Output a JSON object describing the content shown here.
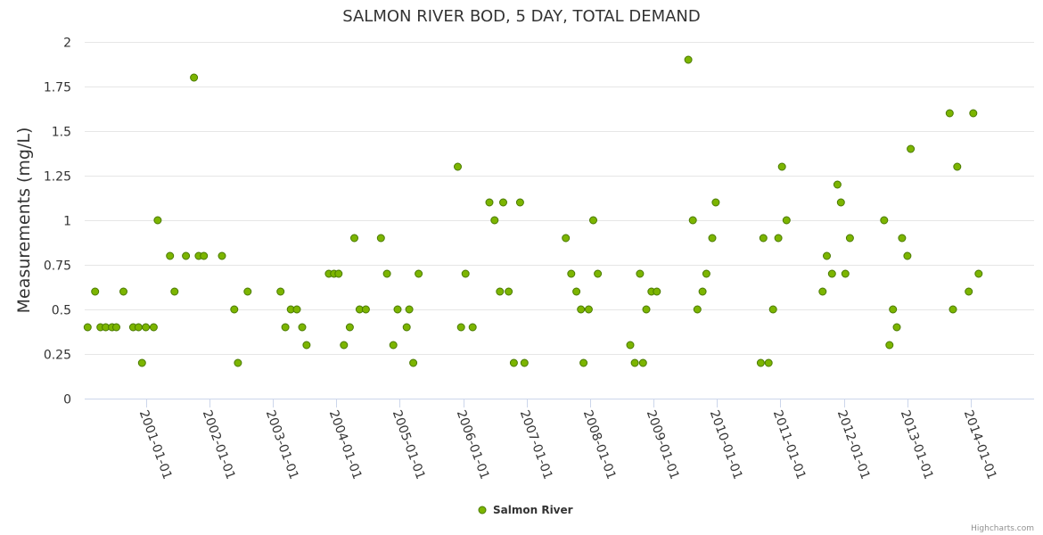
{
  "chart_data": {
    "type": "scatter",
    "title": "SALMON RIVER BOD, 5 DAY, TOTAL DEMAND",
    "xlabel": "",
    "ylabel": "Measurements (mg/L)",
    "ylim": [
      0,
      2
    ],
    "yticks": [
      "0",
      "0.25",
      "0.5",
      "0.75",
      "1",
      "1.25",
      "1.5",
      "1.75",
      "2"
    ],
    "xlim": [
      "2000-01-15",
      "2014-12-31"
    ],
    "xticks": [
      "2001-01-01",
      "2002-01-01",
      "2003-01-01",
      "2004-01-01",
      "2005-01-01",
      "2006-01-01",
      "2007-01-01",
      "2008-01-01",
      "2009-01-01",
      "2010-01-01",
      "2011-01-01",
      "2012-01-01",
      "2013-01-01",
      "2014-01-01"
    ],
    "grid": "horizontal",
    "legend": "bottom-center",
    "series": [
      {
        "name": "Salmon River",
        "color": "#7cb500",
        "edge_color": "#4a7a00",
        "points": [
          [
            "2000-02-01",
            0.4
          ],
          [
            "2000-03-15",
            0.6
          ],
          [
            "2000-04-15",
            0.4
          ],
          [
            "2000-05-15",
            0.4
          ],
          [
            "2000-06-20",
            0.4
          ],
          [
            "2000-07-15",
            0.4
          ],
          [
            "2000-08-25",
            0.6
          ],
          [
            "2000-10-20",
            0.4
          ],
          [
            "2000-11-20",
            0.4
          ],
          [
            "2000-12-10",
            0.2
          ],
          [
            "2001-01-01",
            0.4
          ],
          [
            "2001-02-15",
            0.4
          ],
          [
            "2001-03-10",
            1.0
          ],
          [
            "2001-05-20",
            0.8
          ],
          [
            "2001-06-15",
            0.6
          ],
          [
            "2001-08-20",
            0.8
          ],
          [
            "2001-10-05",
            1.8
          ],
          [
            "2001-11-01",
            0.8
          ],
          [
            "2001-12-01",
            0.8
          ],
          [
            "2002-03-15",
            0.8
          ],
          [
            "2002-05-25",
            0.5
          ],
          [
            "2002-06-15",
            0.2
          ],
          [
            "2002-08-10",
            0.6
          ],
          [
            "2003-02-15",
            0.6
          ],
          [
            "2003-03-15",
            0.4
          ],
          [
            "2003-04-15",
            0.5
          ],
          [
            "2003-05-20",
            0.5
          ],
          [
            "2003-06-20",
            0.4
          ],
          [
            "2003-07-15",
            0.3
          ],
          [
            "2003-11-20",
            0.7
          ],
          [
            "2003-12-20",
            0.7
          ],
          [
            "2004-01-15",
            0.7
          ],
          [
            "2004-02-15",
            0.3
          ],
          [
            "2004-03-20",
            0.4
          ],
          [
            "2004-04-15",
            0.9
          ],
          [
            "2004-05-15",
            0.5
          ],
          [
            "2004-06-20",
            0.5
          ],
          [
            "2004-09-15",
            0.9
          ],
          [
            "2004-10-20",
            0.7
          ],
          [
            "2004-11-25",
            0.3
          ],
          [
            "2004-12-20",
            0.5
          ],
          [
            "2005-02-10",
            0.4
          ],
          [
            "2005-02-25",
            0.5
          ],
          [
            "2005-03-20",
            0.2
          ],
          [
            "2005-04-20",
            0.7
          ],
          [
            "2005-12-01",
            1.3
          ],
          [
            "2005-12-20",
            0.4
          ],
          [
            "2006-01-15",
            0.7
          ],
          [
            "2006-02-25",
            0.4
          ],
          [
            "2006-06-01",
            1.1
          ],
          [
            "2006-07-01",
            1.0
          ],
          [
            "2006-08-01",
            0.6
          ],
          [
            "2006-08-20",
            1.1
          ],
          [
            "2006-09-20",
            0.6
          ],
          [
            "2006-10-20",
            0.2
          ],
          [
            "2006-11-25",
            1.1
          ],
          [
            "2006-12-20",
            0.2
          ],
          [
            "2007-08-15",
            0.9
          ],
          [
            "2007-09-15",
            0.7
          ],
          [
            "2007-10-15",
            0.6
          ],
          [
            "2007-11-10",
            0.5
          ],
          [
            "2007-11-25",
            0.2
          ],
          [
            "2007-12-25",
            0.5
          ],
          [
            "2008-01-20",
            1.0
          ],
          [
            "2008-02-15",
            0.7
          ],
          [
            "2008-08-20",
            0.3
          ],
          [
            "2008-09-15",
            0.2
          ],
          [
            "2008-10-15",
            0.7
          ],
          [
            "2008-11-01",
            0.2
          ],
          [
            "2008-11-20",
            0.5
          ],
          [
            "2008-12-20",
            0.6
          ],
          [
            "2009-01-20",
            0.6
          ],
          [
            "2009-07-20",
            1.9
          ],
          [
            "2009-08-15",
            1.0
          ],
          [
            "2009-09-10",
            0.5
          ],
          [
            "2009-10-10",
            0.6
          ],
          [
            "2009-11-01",
            0.7
          ],
          [
            "2009-12-05",
            0.9
          ],
          [
            "2009-12-25",
            1.1
          ],
          [
            "2010-09-10",
            0.2
          ],
          [
            "2010-09-25",
            0.9
          ],
          [
            "2010-10-25",
            0.2
          ],
          [
            "2010-11-20",
            0.5
          ],
          [
            "2010-12-20",
            0.9
          ],
          [
            "2011-01-10",
            1.3
          ],
          [
            "2011-02-05",
            1.0
          ],
          [
            "2011-09-01",
            0.6
          ],
          [
            "2011-09-25",
            0.8
          ],
          [
            "2011-10-25",
            0.7
          ],
          [
            "2011-11-25",
            1.2
          ],
          [
            "2011-12-15",
            1.1
          ],
          [
            "2012-01-10",
            0.7
          ],
          [
            "2012-02-05",
            0.9
          ],
          [
            "2012-08-20",
            1.0
          ],
          [
            "2012-09-20",
            0.3
          ],
          [
            "2012-10-10",
            0.5
          ],
          [
            "2012-11-01",
            0.4
          ],
          [
            "2012-12-01",
            0.9
          ],
          [
            "2013-01-01",
            0.8
          ],
          [
            "2013-01-20",
            1.4
          ],
          [
            "2013-09-01",
            1.6
          ],
          [
            "2013-09-20",
            0.5
          ],
          [
            "2013-10-15",
            1.3
          ],
          [
            "2013-12-20",
            0.6
          ],
          [
            "2014-01-15",
            1.6
          ],
          [
            "2014-02-15",
            0.7
          ]
        ]
      }
    ]
  },
  "credits": "Highcharts.com"
}
